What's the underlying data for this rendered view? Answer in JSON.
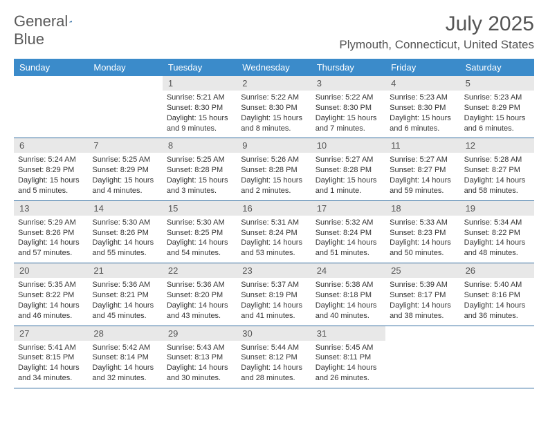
{
  "brand": {
    "word1": "General",
    "word2": "Blue"
  },
  "title": "July 2025",
  "location": "Plymouth, Connecticut, United States",
  "colors": {
    "header_bg": "#3b8bca",
    "header_text": "#ffffff",
    "daynum_bg": "#e8e8e8",
    "text": "#333333",
    "rule": "#2e6a9e",
    "brand_gray": "#5a5a5a",
    "brand_blue": "#2f6fa8"
  },
  "weekdays": [
    "Sunday",
    "Monday",
    "Tuesday",
    "Wednesday",
    "Thursday",
    "Friday",
    "Saturday"
  ],
  "weeks": [
    [
      {
        "n": "",
        "sr": "",
        "ss": "",
        "dl": ""
      },
      {
        "n": "",
        "sr": "",
        "ss": "",
        "dl": ""
      },
      {
        "n": "1",
        "sr": "Sunrise: 5:21 AM",
        "ss": "Sunset: 8:30 PM",
        "dl": "Daylight: 15 hours and 9 minutes."
      },
      {
        "n": "2",
        "sr": "Sunrise: 5:22 AM",
        "ss": "Sunset: 8:30 PM",
        "dl": "Daylight: 15 hours and 8 minutes."
      },
      {
        "n": "3",
        "sr": "Sunrise: 5:22 AM",
        "ss": "Sunset: 8:30 PM",
        "dl": "Daylight: 15 hours and 7 minutes."
      },
      {
        "n": "4",
        "sr": "Sunrise: 5:23 AM",
        "ss": "Sunset: 8:30 PM",
        "dl": "Daylight: 15 hours and 6 minutes."
      },
      {
        "n": "5",
        "sr": "Sunrise: 5:23 AM",
        "ss": "Sunset: 8:29 PM",
        "dl": "Daylight: 15 hours and 6 minutes."
      }
    ],
    [
      {
        "n": "6",
        "sr": "Sunrise: 5:24 AM",
        "ss": "Sunset: 8:29 PM",
        "dl": "Daylight: 15 hours and 5 minutes."
      },
      {
        "n": "7",
        "sr": "Sunrise: 5:25 AM",
        "ss": "Sunset: 8:29 PM",
        "dl": "Daylight: 15 hours and 4 minutes."
      },
      {
        "n": "8",
        "sr": "Sunrise: 5:25 AM",
        "ss": "Sunset: 8:28 PM",
        "dl": "Daylight: 15 hours and 3 minutes."
      },
      {
        "n": "9",
        "sr": "Sunrise: 5:26 AM",
        "ss": "Sunset: 8:28 PM",
        "dl": "Daylight: 15 hours and 2 minutes."
      },
      {
        "n": "10",
        "sr": "Sunrise: 5:27 AM",
        "ss": "Sunset: 8:28 PM",
        "dl": "Daylight: 15 hours and 1 minute."
      },
      {
        "n": "11",
        "sr": "Sunrise: 5:27 AM",
        "ss": "Sunset: 8:27 PM",
        "dl": "Daylight: 14 hours and 59 minutes."
      },
      {
        "n": "12",
        "sr": "Sunrise: 5:28 AM",
        "ss": "Sunset: 8:27 PM",
        "dl": "Daylight: 14 hours and 58 minutes."
      }
    ],
    [
      {
        "n": "13",
        "sr": "Sunrise: 5:29 AM",
        "ss": "Sunset: 8:26 PM",
        "dl": "Daylight: 14 hours and 57 minutes."
      },
      {
        "n": "14",
        "sr": "Sunrise: 5:30 AM",
        "ss": "Sunset: 8:26 PM",
        "dl": "Daylight: 14 hours and 55 minutes."
      },
      {
        "n": "15",
        "sr": "Sunrise: 5:30 AM",
        "ss": "Sunset: 8:25 PM",
        "dl": "Daylight: 14 hours and 54 minutes."
      },
      {
        "n": "16",
        "sr": "Sunrise: 5:31 AM",
        "ss": "Sunset: 8:24 PM",
        "dl": "Daylight: 14 hours and 53 minutes."
      },
      {
        "n": "17",
        "sr": "Sunrise: 5:32 AM",
        "ss": "Sunset: 8:24 PM",
        "dl": "Daylight: 14 hours and 51 minutes."
      },
      {
        "n": "18",
        "sr": "Sunrise: 5:33 AM",
        "ss": "Sunset: 8:23 PM",
        "dl": "Daylight: 14 hours and 50 minutes."
      },
      {
        "n": "19",
        "sr": "Sunrise: 5:34 AM",
        "ss": "Sunset: 8:22 PM",
        "dl": "Daylight: 14 hours and 48 minutes."
      }
    ],
    [
      {
        "n": "20",
        "sr": "Sunrise: 5:35 AM",
        "ss": "Sunset: 8:22 PM",
        "dl": "Daylight: 14 hours and 46 minutes."
      },
      {
        "n": "21",
        "sr": "Sunrise: 5:36 AM",
        "ss": "Sunset: 8:21 PM",
        "dl": "Daylight: 14 hours and 45 minutes."
      },
      {
        "n": "22",
        "sr": "Sunrise: 5:36 AM",
        "ss": "Sunset: 8:20 PM",
        "dl": "Daylight: 14 hours and 43 minutes."
      },
      {
        "n": "23",
        "sr": "Sunrise: 5:37 AM",
        "ss": "Sunset: 8:19 PM",
        "dl": "Daylight: 14 hours and 41 minutes."
      },
      {
        "n": "24",
        "sr": "Sunrise: 5:38 AM",
        "ss": "Sunset: 8:18 PM",
        "dl": "Daylight: 14 hours and 40 minutes."
      },
      {
        "n": "25",
        "sr": "Sunrise: 5:39 AM",
        "ss": "Sunset: 8:17 PM",
        "dl": "Daylight: 14 hours and 38 minutes."
      },
      {
        "n": "26",
        "sr": "Sunrise: 5:40 AM",
        "ss": "Sunset: 8:16 PM",
        "dl": "Daylight: 14 hours and 36 minutes."
      }
    ],
    [
      {
        "n": "27",
        "sr": "Sunrise: 5:41 AM",
        "ss": "Sunset: 8:15 PM",
        "dl": "Daylight: 14 hours and 34 minutes."
      },
      {
        "n": "28",
        "sr": "Sunrise: 5:42 AM",
        "ss": "Sunset: 8:14 PM",
        "dl": "Daylight: 14 hours and 32 minutes."
      },
      {
        "n": "29",
        "sr": "Sunrise: 5:43 AM",
        "ss": "Sunset: 8:13 PM",
        "dl": "Daylight: 14 hours and 30 minutes."
      },
      {
        "n": "30",
        "sr": "Sunrise: 5:44 AM",
        "ss": "Sunset: 8:12 PM",
        "dl": "Daylight: 14 hours and 28 minutes."
      },
      {
        "n": "31",
        "sr": "Sunrise: 5:45 AM",
        "ss": "Sunset: 8:11 PM",
        "dl": "Daylight: 14 hours and 26 minutes."
      },
      {
        "n": "",
        "sr": "",
        "ss": "",
        "dl": ""
      },
      {
        "n": "",
        "sr": "",
        "ss": "",
        "dl": ""
      }
    ]
  ]
}
